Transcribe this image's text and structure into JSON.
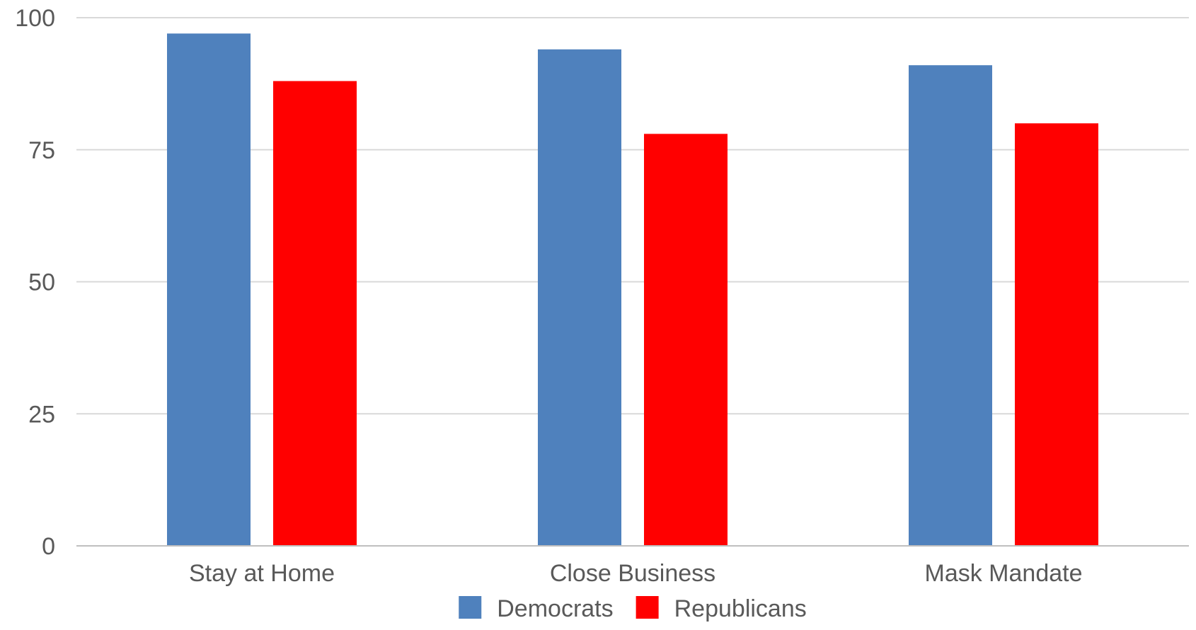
{
  "chart_data": {
    "type": "bar",
    "title": "",
    "xlabel": "",
    "ylabel": "",
    "categories": [
      "Stay at Home",
      "Close Business",
      "Mask Mandate"
    ],
    "series": [
      {
        "name": "Democrats",
        "color": "#4f81bd",
        "values": [
          97,
          94,
          91
        ]
      },
      {
        "name": "Republicans",
        "color": "#ff0000",
        "values": [
          88,
          78,
          80
        ]
      }
    ],
    "ylim": [
      0,
      100
    ],
    "yticks": [
      "0",
      "25",
      "50",
      "75",
      "100"
    ],
    "grid": true,
    "legend_position": "bottom"
  }
}
